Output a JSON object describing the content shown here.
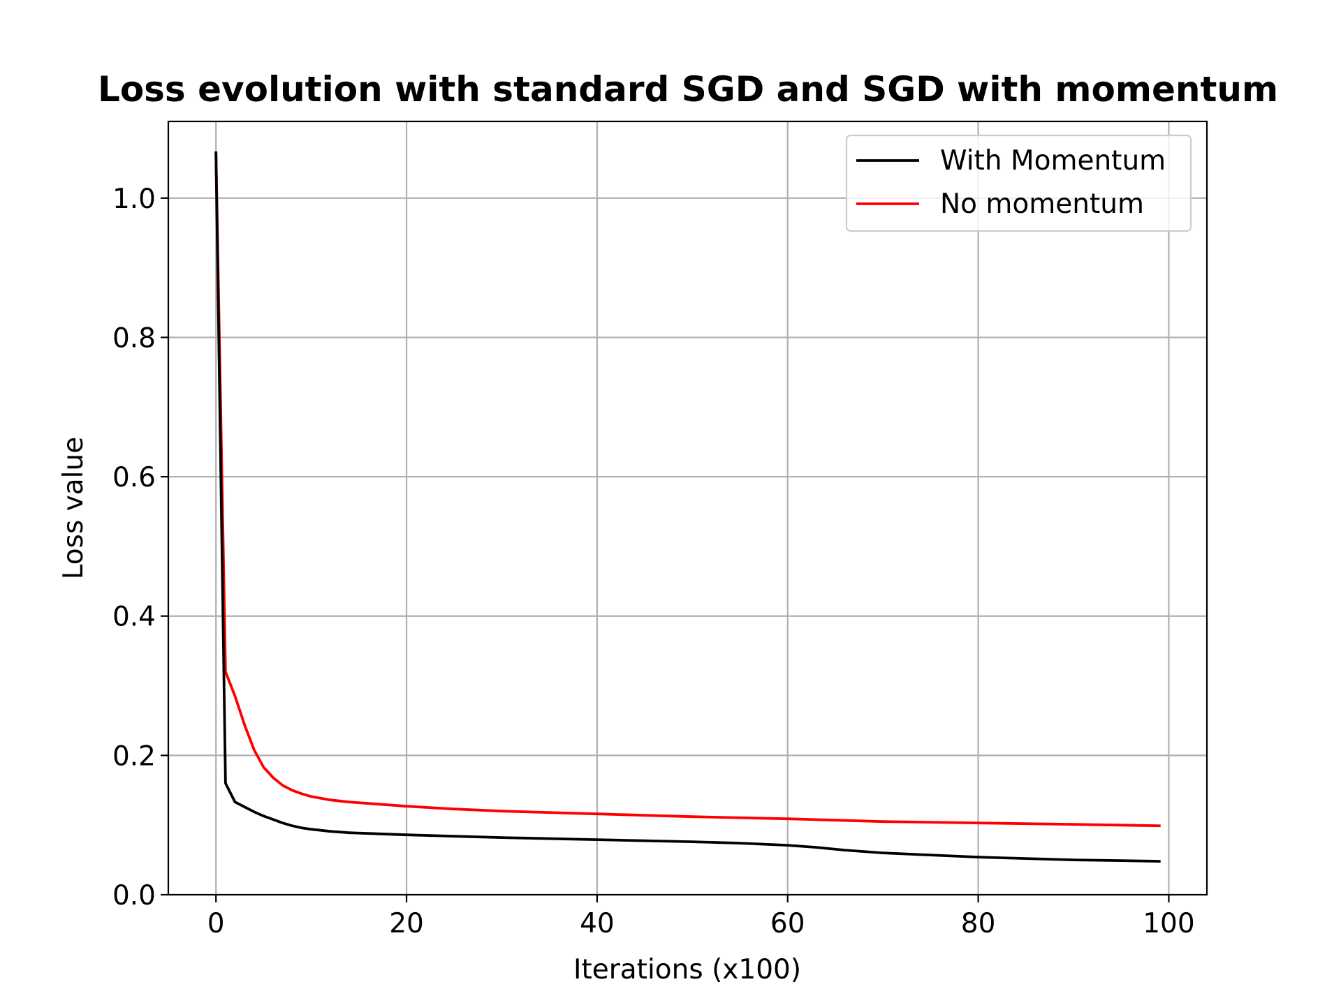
{
  "chart_data": {
    "type": "line",
    "title": "Loss evolution with standard SGD and SGD with momentum",
    "xlabel": "Iterations (x100)",
    "ylabel": "Loss value",
    "xlim": [
      -5,
      104
    ],
    "ylim": [
      0,
      1.11
    ],
    "xticks": [
      {
        "value": 0,
        "label": "0"
      },
      {
        "value": 20,
        "label": "20"
      },
      {
        "value": 40,
        "label": "40"
      },
      {
        "value": 60,
        "label": "60"
      },
      {
        "value": 80,
        "label": "80"
      },
      {
        "value": 100,
        "label": "100"
      }
    ],
    "yticks": [
      {
        "value": 0.0,
        "label": "0.0"
      },
      {
        "value": 0.2,
        "label": "0.2"
      },
      {
        "value": 0.4,
        "label": "0.4"
      },
      {
        "value": 0.6,
        "label": "0.6"
      },
      {
        "value": 0.8,
        "label": "0.8"
      },
      {
        "value": 1.0,
        "label": "1.0"
      }
    ],
    "grid": true,
    "legend_position": "upper-right",
    "series": [
      {
        "name": "With Momentum",
        "color": "#000000",
        "x": [
          0,
          1,
          2,
          3,
          4,
          5,
          6,
          7,
          8,
          9,
          10,
          12,
          14,
          16,
          20,
          25,
          30,
          40,
          50,
          55,
          60,
          63,
          66,
          70,
          75,
          80,
          85,
          90,
          95,
          99
        ],
        "y": [
          1.065,
          0.16,
          0.133,
          0.126,
          0.119,
          0.113,
          0.108,
          0.103,
          0.099,
          0.096,
          0.094,
          0.091,
          0.089,
          0.088,
          0.086,
          0.084,
          0.082,
          0.079,
          0.076,
          0.074,
          0.071,
          0.068,
          0.064,
          0.06,
          0.057,
          0.054,
          0.052,
          0.05,
          0.049,
          0.048
        ]
      },
      {
        "name": "No momentum",
        "color": "#ff0000",
        "x": [
          0,
          1,
          2,
          3,
          4,
          5,
          6,
          7,
          8,
          9,
          10,
          12,
          14,
          16,
          20,
          25,
          30,
          40,
          50,
          60,
          70,
          80,
          90,
          99
        ],
        "y": [
          1.065,
          0.32,
          0.285,
          0.244,
          0.208,
          0.183,
          0.168,
          0.157,
          0.15,
          0.145,
          0.141,
          0.136,
          0.133,
          0.131,
          0.127,
          0.123,
          0.12,
          0.116,
          0.112,
          0.109,
          0.105,
          0.103,
          0.101,
          0.099
        ]
      }
    ]
  }
}
